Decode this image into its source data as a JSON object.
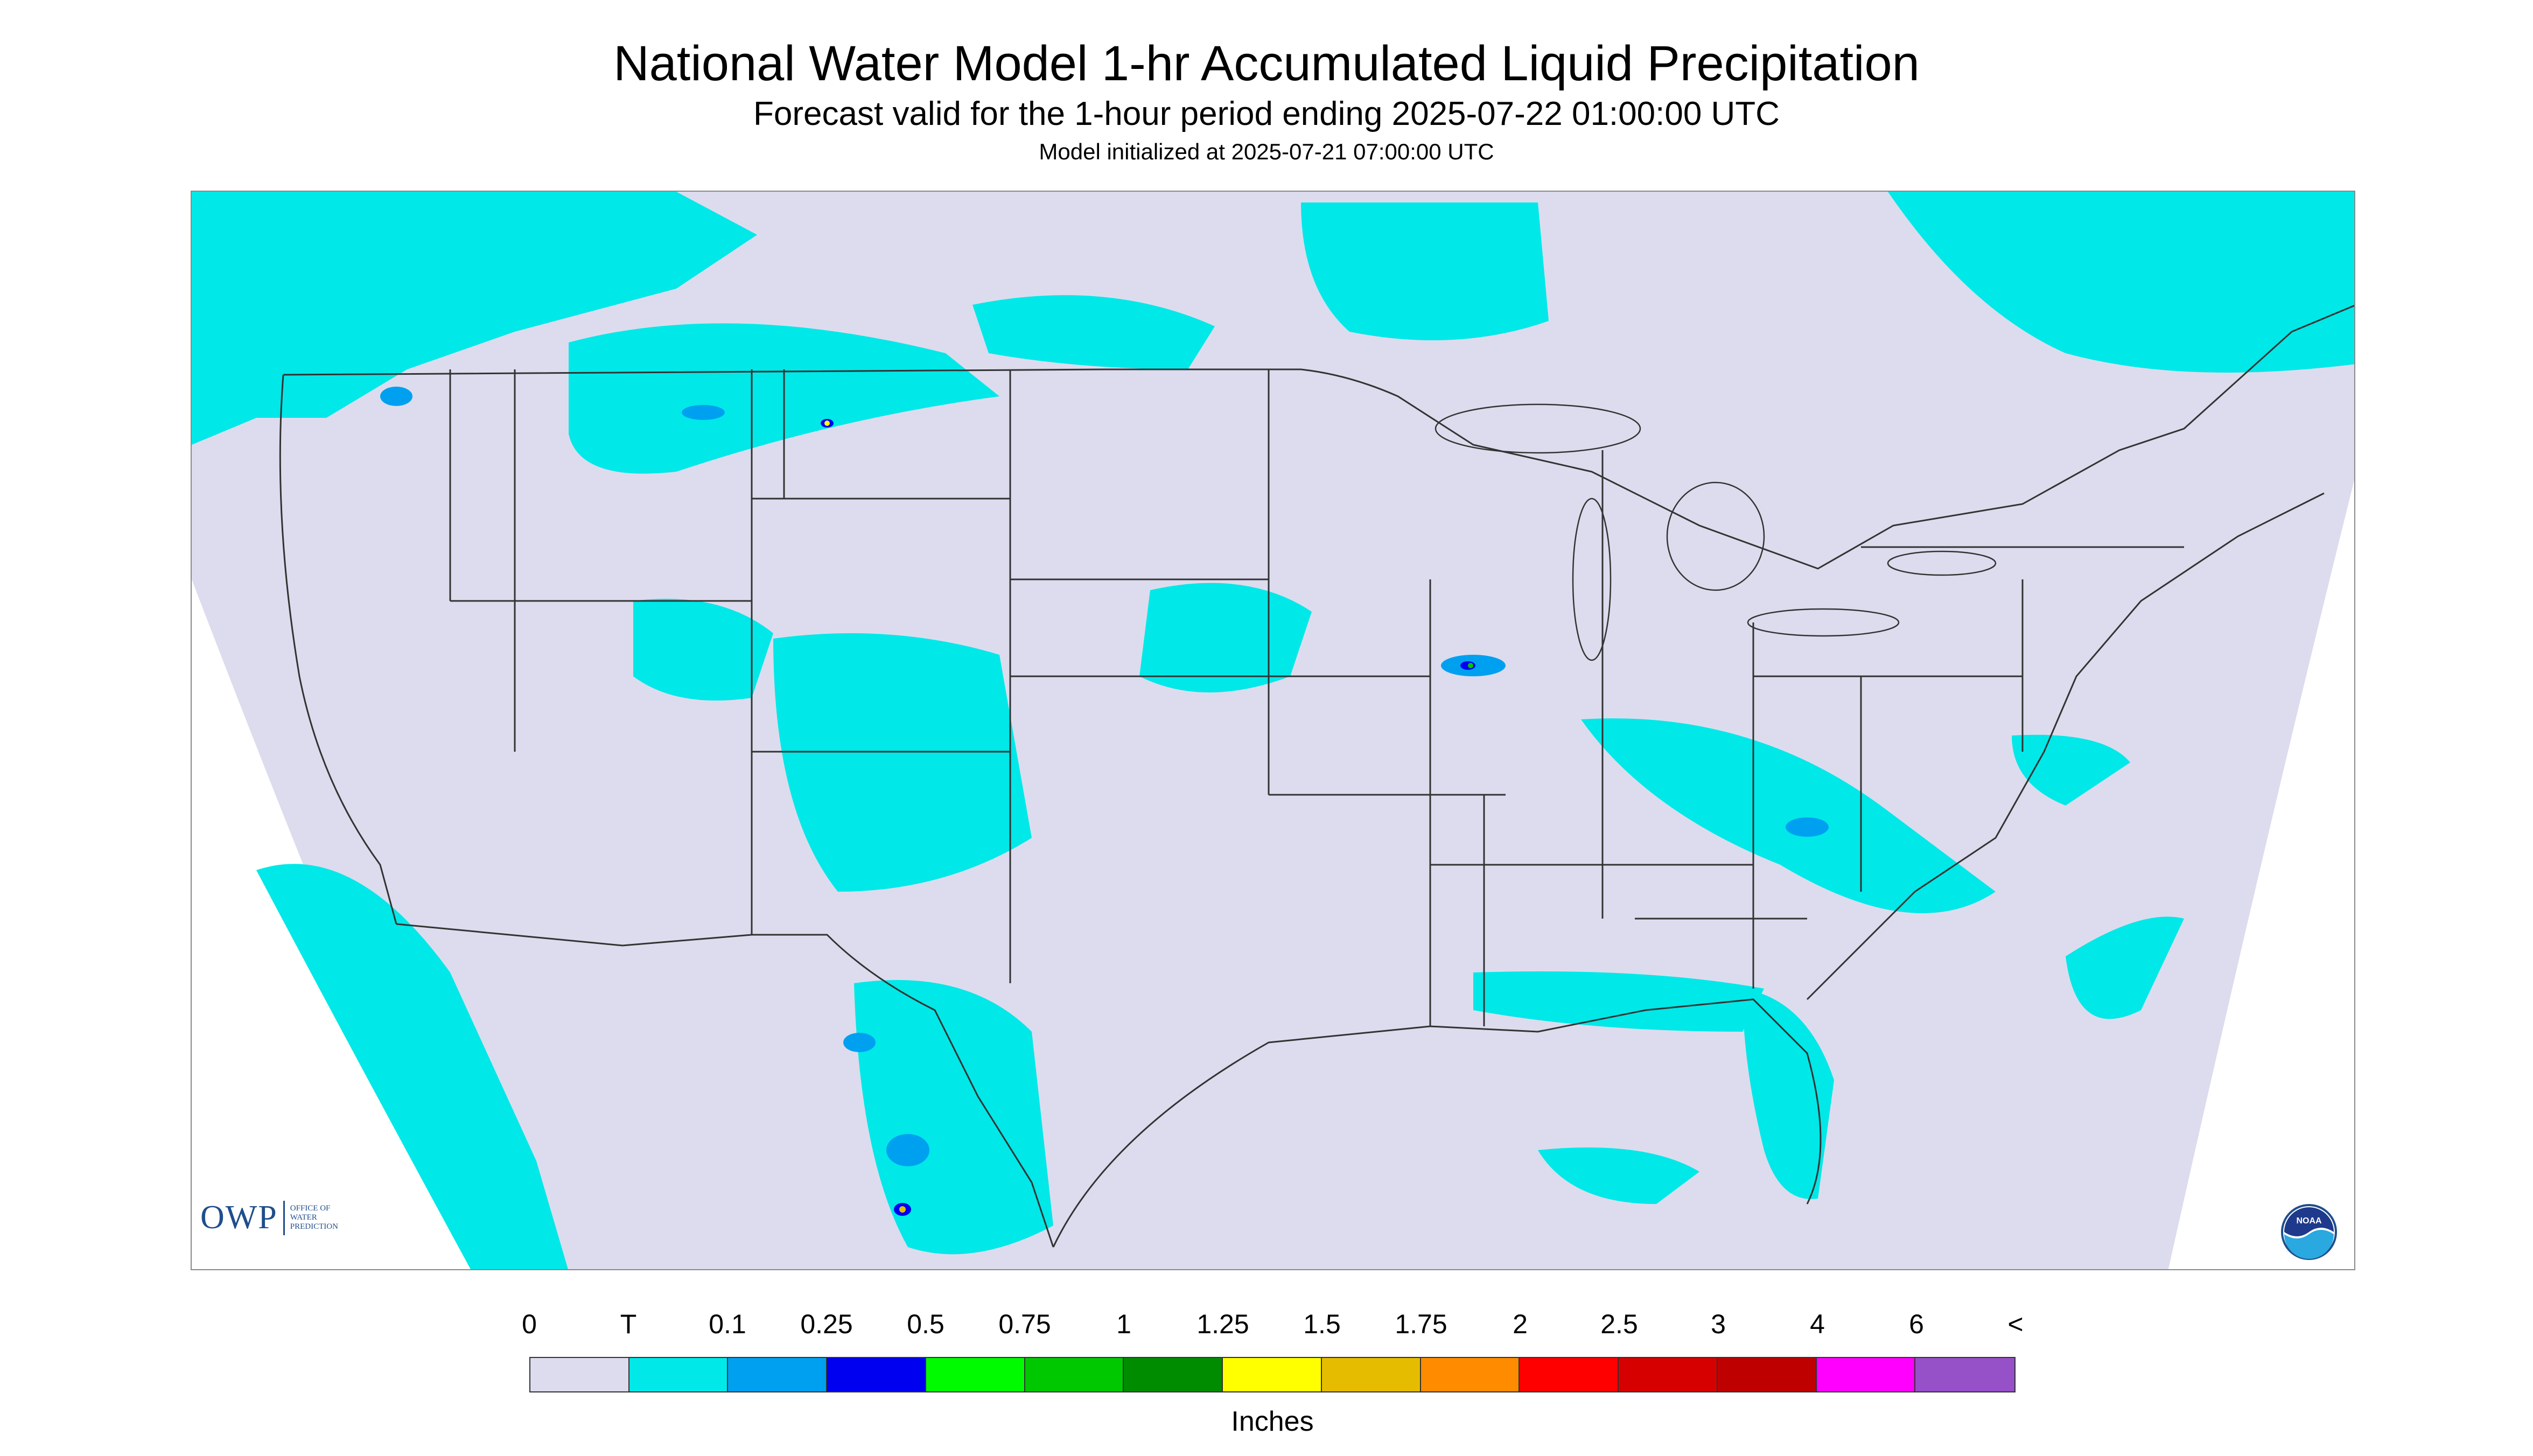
{
  "header": {
    "title": "National Water Model 1-hr Accumulated Liquid Precipitation",
    "subtitle": "Forecast valid for the 1-hour period ending 2025-07-22 01:00:00 UTC",
    "init_line": "Model initialized at 2025-07-21 07:00:00 UTC"
  },
  "logos": {
    "owp_text": "OWP",
    "owp_sub_1": "OFFICE OF",
    "owp_sub_2": "WATER",
    "owp_sub_3": "PREDICTION",
    "noaa_text": "NOAA"
  },
  "legend": {
    "units": "Inches",
    "labels": [
      "0",
      "T",
      "0.1",
      "0.25",
      "0.5",
      "0.75",
      "1",
      "1.25",
      "1.5",
      "1.75",
      "2",
      "2.5",
      "3",
      "4",
      "6",
      "<"
    ],
    "colors": [
      "#dcdcee",
      "#00e8e8",
      "#00a0f0",
      "#0000f0",
      "#00fa00",
      "#00c800",
      "#008c00",
      "#ffff00",
      "#e6bc00",
      "#ff8c00",
      "#ff0000",
      "#d70000",
      "#bf0000",
      "#ff00ff",
      "#9650c8"
    ]
  },
  "colors": {
    "domain_fill": "#dcdcee",
    "light_precip": "#00e8e8",
    "moderate_precip": "#00a0f0",
    "heavy_precip": "#0000f0",
    "boundary_lines": "#333333"
  }
}
